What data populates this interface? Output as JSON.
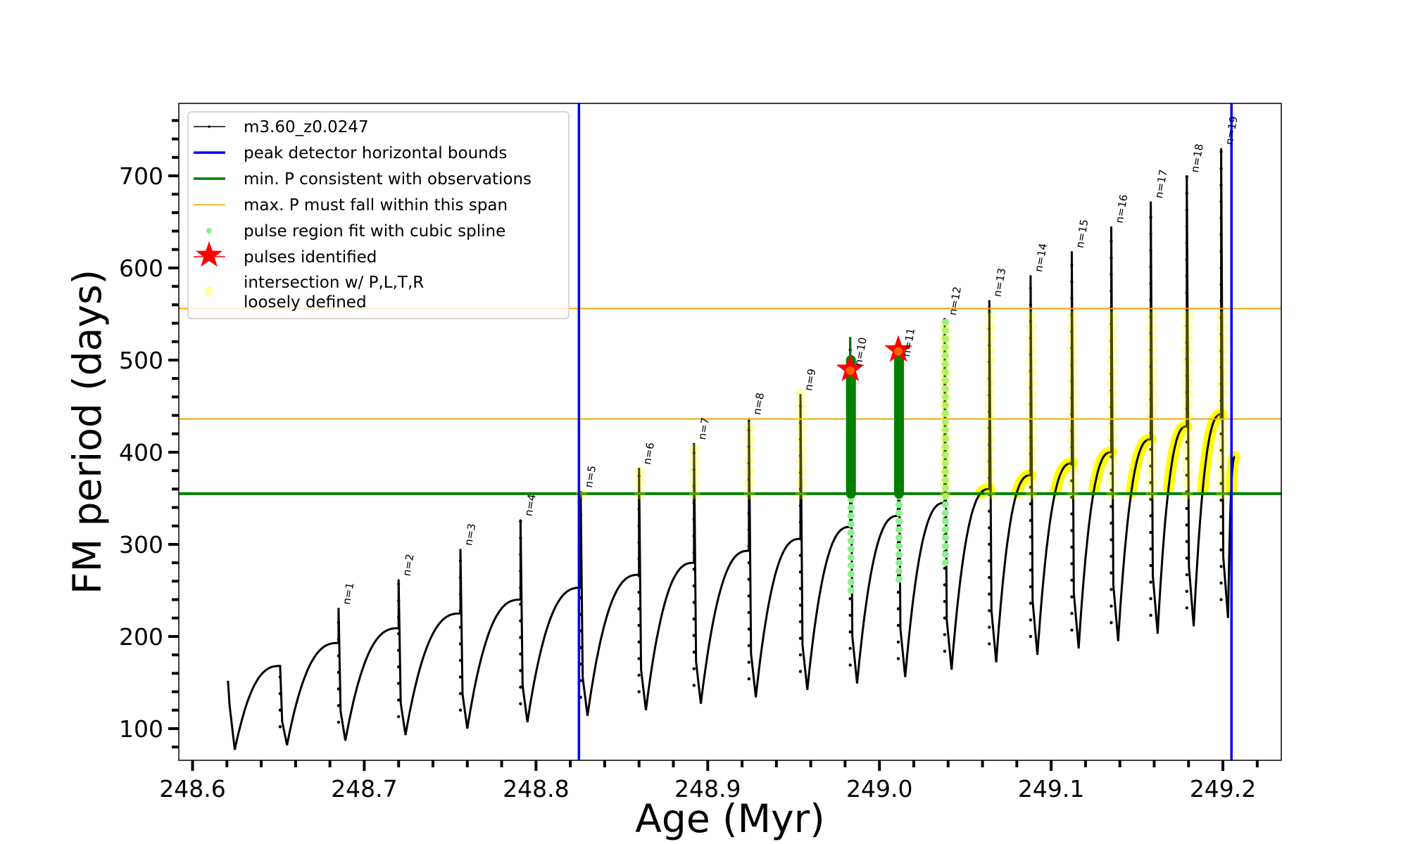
{
  "chart_data": {
    "type": "line",
    "title": "",
    "xlabel": "Age (Myr)",
    "ylabel": "FM period (days)",
    "xlim": [
      248.592,
      249.234
    ],
    "ylim": [
      65.6,
      778.6
    ],
    "grid": false,
    "legend_placement": "top-left",
    "x_ticks": [
      248.6,
      248.7,
      248.8,
      248.9,
      249.0,
      249.1,
      249.2
    ],
    "x_tick_labels": [
      "248.6",
      "248.7",
      "248.8",
      "248.9",
      "249.0",
      "249.1",
      "249.2"
    ],
    "x_minor_step": 0.02,
    "y_ticks": [
      100,
      200,
      300,
      400,
      500,
      600,
      700
    ],
    "y_tick_labels": [
      "100",
      "200",
      "300",
      "400",
      "500",
      "600",
      "700"
    ],
    "y_minor_step": 20,
    "track": {
      "name": "m3.60_z0.0247",
      "color": "#000000",
      "start": {
        "age": 248.6206,
        "period": 152,
        "min_period": 77
      },
      "cycles": [
        {
          "label": "",
          "age": 248.651,
          "pre_period": 168,
          "peak": 168,
          "min_period": 82
        },
        {
          "label": "n=1",
          "age": 248.685,
          "pre_period": 193,
          "peak": 231,
          "min_period": 87
        },
        {
          "label": "n=2",
          "age": 248.72,
          "pre_period": 209,
          "peak": 262,
          "min_period": 93
        },
        {
          "label": "n=3",
          "age": 248.756,
          "pre_period": 225,
          "peak": 295,
          "min_period": 100
        },
        {
          "label": "n=4",
          "age": 248.791,
          "pre_period": 240,
          "peak": 327,
          "min_period": 107
        },
        {
          "label": "n=5",
          "age": 248.826,
          "pre_period": 253,
          "peak": 358,
          "min_period": 114
        },
        {
          "label": "n=6",
          "age": 248.86,
          "pre_period": 267,
          "peak": 383,
          "min_period": 120
        },
        {
          "label": "n=7",
          "age": 248.892,
          "pre_period": 280,
          "peak": 410,
          "min_period": 127
        },
        {
          "label": "n=8",
          "age": 248.924,
          "pre_period": 293,
          "peak": 437,
          "min_period": 134
        },
        {
          "label": "n=9",
          "age": 248.954,
          "pre_period": 306,
          "peak": 463,
          "min_period": 142
        },
        {
          "label": "n=10",
          "age": 248.983,
          "pre_period": 319,
          "peak": 525,
          "min_period": 149
        },
        {
          "label": "n=11",
          "age": 249.011,
          "pre_period": 331,
          "peak": 500,
          "min_period": 156
        },
        {
          "label": "n=12",
          "age": 249.038,
          "pre_period": 345,
          "peak": 545,
          "min_period": 164
        },
        {
          "label": "n=13",
          "age": 249.064,
          "pre_period": 360,
          "peak": 565,
          "min_period": 172
        },
        {
          "label": "n=14",
          "age": 249.088,
          "pre_period": 375,
          "peak": 592,
          "min_period": 180
        },
        {
          "label": "n=15",
          "age": 249.112,
          "pre_period": 388,
          "peak": 618,
          "min_period": 187
        },
        {
          "label": "n=16",
          "age": 249.135,
          "pre_period": 400,
          "peak": 645,
          "min_period": 195
        },
        {
          "label": "n=17",
          "age": 249.158,
          "pre_period": 414,
          "peak": 672,
          "min_period": 203
        },
        {
          "label": "n=18",
          "age": 249.179,
          "pre_period": 428,
          "peak": 700,
          "min_period": 211
        },
        {
          "label": "n=19",
          "age": 249.199,
          "pre_period": 441,
          "peak": 730,
          "min_period": 220
        }
      ],
      "end": {
        "age": 249.207,
        "period": 395
      }
    },
    "peak_detector_bounds": {
      "name": "peak detector horizontal bounds",
      "color": "#0000ff",
      "ages": [
        248.825,
        249.205
      ]
    },
    "min_period_line": {
      "name": "min. P consistent with observations",
      "color": "#008000",
      "period": 355
    },
    "max_period_span": {
      "name": "max. P must fall within this span",
      "color": "#ffa500",
      "periods": [
        436,
        556
      ]
    },
    "spline_fit": {
      "name": "pulse region fit with cubic spline",
      "color": "#90ee90",
      "pulses": [
        "n=10",
        "n=11",
        "n=12"
      ],
      "low_periods": [
        250,
        262,
        280
      ]
    },
    "pulses_identified": {
      "name": "pulses identified",
      "color": "#ff0000",
      "points": [
        {
          "age": 248.983,
          "period": 490
        },
        {
          "age": 249.011,
          "period": 511
        }
      ]
    },
    "intersection": {
      "name": "intersection w/ P,L,T,R\nloosely defined",
      "name_lines": [
        "intersection w/ P,L,T,R",
        "loosely defined"
      ],
      "color": "#ffff00",
      "strong_color": "#008000"
    }
  }
}
